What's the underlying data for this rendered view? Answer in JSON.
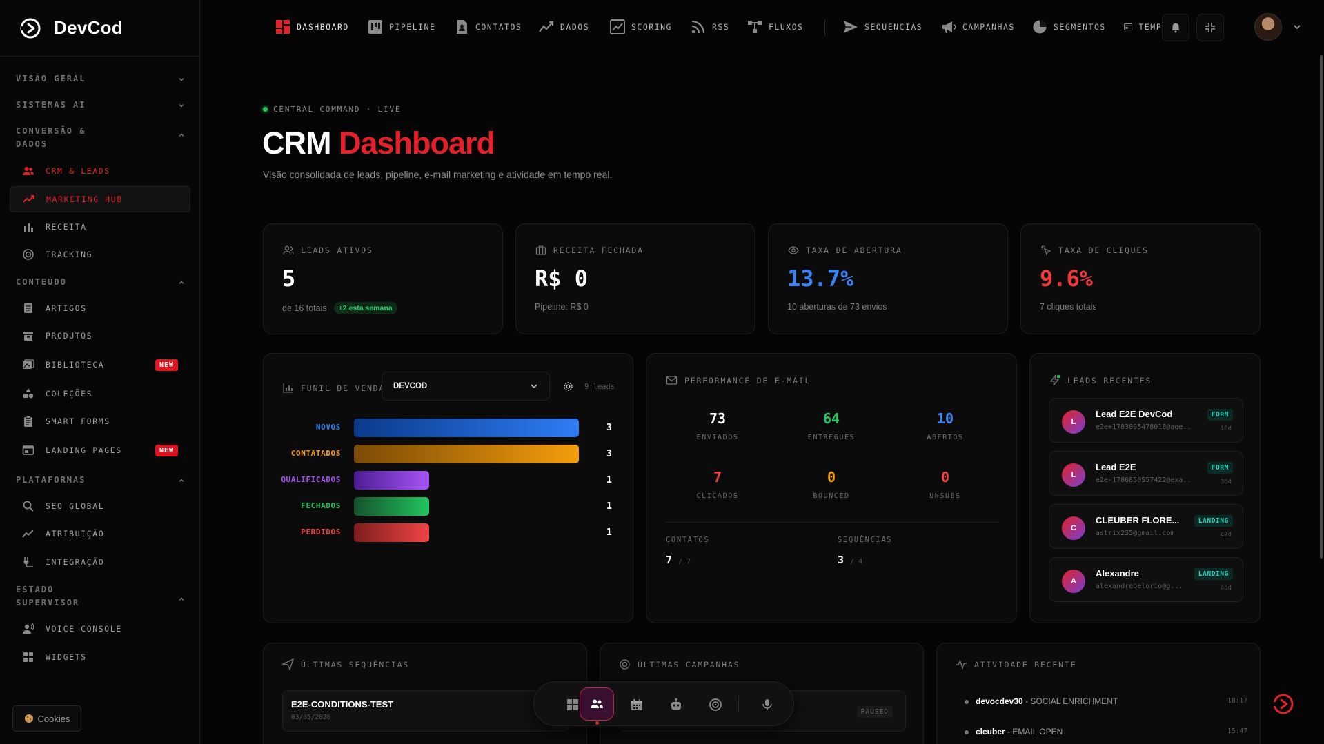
{
  "brand": {
    "name": "DevCod"
  },
  "sidebar": {
    "sections": [
      {
        "label": "VISÃO GERAL"
      },
      {
        "label": "SISTEMAS AI"
      },
      {
        "label": "CONVERSÃO & DADOS"
      },
      {
        "label": "CONTEÚDO"
      },
      {
        "label": "PLATAFORMAS"
      },
      {
        "label": "ESTADO SUPERVISOR"
      }
    ],
    "items": [
      {
        "label": "CRM & LEADS",
        "icon": "users-icon"
      },
      {
        "label": "MARKETING HUB",
        "icon": "trend-icon"
      },
      {
        "label": "RECEITA",
        "icon": "bar-chart-icon"
      },
      {
        "label": "TRACKING",
        "icon": "target-icon"
      },
      {
        "label": "ARTIGOS",
        "icon": "article-icon"
      },
      {
        "label": "PRODUTOS",
        "icon": "box-icon"
      },
      {
        "label": "BIBLIOTECA",
        "icon": "library-icon",
        "badge": "NEW"
      },
      {
        "label": "COLEÇÕES",
        "icon": "shapes-icon"
      },
      {
        "label": "SMART FORMS",
        "icon": "clipboard-icon"
      },
      {
        "label": "LANDING PAGES",
        "icon": "browser-icon",
        "badge": "NEW"
      },
      {
        "label": "SEO GLOBAL",
        "icon": "search-icon"
      },
      {
        "label": "ATRIBUIÇÃO",
        "icon": "trend-icon"
      },
      {
        "label": "INTEGRAÇÃO",
        "icon": "plug-icon"
      },
      {
        "label": "VOICE CONSOLE",
        "icon": "voice-icon"
      },
      {
        "label": "WIDGETS",
        "icon": "grid-icon"
      }
    ],
    "cookies": "Cookies"
  },
  "topnav": [
    {
      "label": "DASHBOARD",
      "icon": "dashboard-icon"
    },
    {
      "label": "PIPELINE",
      "icon": "kanban-icon"
    },
    {
      "label": "CONTATOS",
      "icon": "contact-icon"
    },
    {
      "label": "DADOS",
      "icon": "trend-icon"
    },
    {
      "label": "SCORING",
      "icon": "scoring-icon"
    },
    {
      "label": "RSS",
      "icon": "rss-icon"
    },
    {
      "label": "FLUXOS",
      "icon": "flow-icon"
    },
    {
      "label": "SEQUENCIAS",
      "icon": "send-icon"
    },
    {
      "label": "CAMPANHAS",
      "icon": "megaphone-icon"
    },
    {
      "label": "SEGMENTOS",
      "icon": "pie-icon"
    },
    {
      "label": "TEMPLA",
      "icon": "template-icon"
    }
  ],
  "header": {
    "eyebrow": "CENTRAL COMMAND · LIVE",
    "title_plain": "CRM",
    "title_accent": "Dashboard",
    "subtitle": "Visão consolidada de leads, pipeline, e-mail marketing e atividade em tempo real."
  },
  "kpis": [
    {
      "label": "LEADS ATIVOS",
      "value": "5",
      "sub": "de 16 totais",
      "pill": "+2 esta semana",
      "color": "#ffffff"
    },
    {
      "label": "RECEITA FECHADA",
      "value": "R$ 0",
      "sub": "Pipeline: R$ 0",
      "color": "#ffffff"
    },
    {
      "label": "TAXA DE ABERTURA",
      "value": "13.7%",
      "sub": "10 aberturas de 73 envios",
      "color": "#3b82f6"
    },
    {
      "label": "TAXA DE CLIQUES",
      "value": "9.6%",
      "sub": "7 cliques totais",
      "color": "#ef3b3b"
    }
  ],
  "funnel": {
    "label": "FUNIL DE VENDAS",
    "selected": "DEVCOD",
    "count": "9 leads",
    "max": 3,
    "stages": [
      {
        "label": "NOVOS",
        "value": 3,
        "color": "#2f7df6",
        "from": "#0b3a8a"
      },
      {
        "label": "CONTATADOS",
        "value": 3,
        "color": "#f59e0b",
        "from": "#7a4a06"
      },
      {
        "label": "QUALIFICADOS",
        "value": 1,
        "color": "#a855f7",
        "from": "#4c1d95"
      },
      {
        "label": "FECHADOS",
        "value": 1,
        "color": "#22c55e",
        "from": "#14532d"
      },
      {
        "label": "PERDIDOS",
        "value": 1,
        "color": "#ef4444",
        "from": "#7f1d1d"
      }
    ]
  },
  "email": {
    "label": "PERFORMANCE DE E-MAIL",
    "stats": [
      {
        "value": "73",
        "label": "ENVIADOS",
        "color": "#ffffff"
      },
      {
        "value": "64",
        "label": "ENTREGUES",
        "color": "#22c55e"
      },
      {
        "value": "10",
        "label": "ABERTOS",
        "color": "#3b82f6"
      },
      {
        "value": "7",
        "label": "CLICADOS",
        "color": "#ef4444"
      },
      {
        "value": "0",
        "label": "BOUNCED",
        "color": "#f59e0b"
      },
      {
        "value": "0",
        "label": "UNSUBS",
        "color": "#ef4444"
      }
    ],
    "contacts_label": "CONTATOS",
    "contacts_value": "7",
    "contacts_total": "/ 7",
    "seq_label": "SEQUÊNCIAS",
    "seq_value": "3",
    "seq_total": "/ 4"
  },
  "leads": {
    "label": "LEADS RECENTES",
    "items": [
      {
        "initial": "L",
        "name": "Lead E2E DevCod",
        "email": "e2e+1783095478018@age...",
        "tag": "FORM",
        "age": "10d"
      },
      {
        "initial": "L",
        "name": "Lead E2E",
        "email": "e2e-1780850557422@exa...",
        "tag": "FORM",
        "age": "36d"
      },
      {
        "initial": "C",
        "name": "CLEUBER FLORE...",
        "email": "astrix235@gmail.com",
        "tag": "LANDING",
        "age": "42d"
      },
      {
        "initial": "A",
        "name": "Alexandre",
        "email": "alexandrebelorio@g...",
        "tag": "LANDING",
        "age": "46d"
      }
    ]
  },
  "sequences": {
    "label": "ÚLTIMAS SEQUÊNCIAS",
    "items": [
      {
        "name": "E2E-CONDITIONS-TEST",
        "date": "03/05/2026"
      }
    ]
  },
  "campaigns": {
    "label": "ÚLTIMAS CAMPANHAS",
    "items": [
      {
        "status": "PAUSED"
      }
    ]
  },
  "activity": {
    "label": "ATIVIDADE RECENTE",
    "items": [
      {
        "user": "devocdev30",
        "action": "- SOCIAL ENRICHMENT",
        "time": "18:17"
      },
      {
        "user": "cleuber",
        "action": "- EMAIL OPEN",
        "time": "15:47"
      }
    ]
  }
}
